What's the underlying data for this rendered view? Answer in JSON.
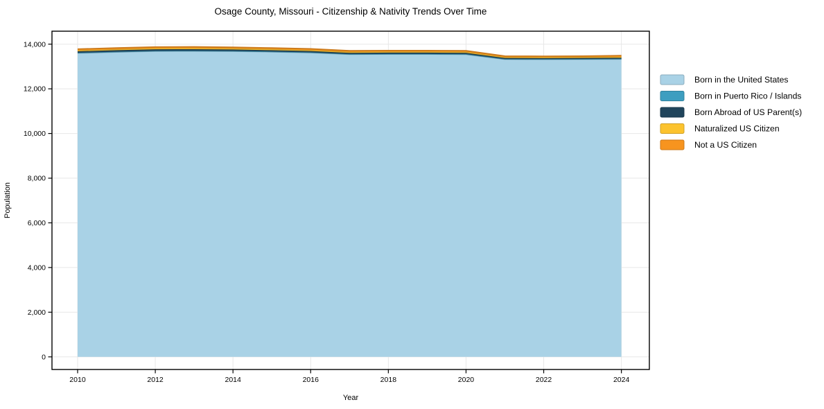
{
  "title": "Osage County, Missouri - Citizenship & Nativity Trends Over Time",
  "chart_data": {
    "type": "area",
    "stacked": true,
    "title": "Osage County, Missouri - Citizenship & Nativity Trends Over Time",
    "xlabel": "Year",
    "ylabel": "Population",
    "x": [
      2010,
      2011,
      2012,
      2013,
      2014,
      2015,
      2016,
      2017,
      2018,
      2019,
      2020,
      2021,
      2022,
      2023,
      2024
    ],
    "series": [
      {
        "name": "Born in the United States",
        "color": "#a9d2e6",
        "values": [
          13600,
          13645,
          13685,
          13690,
          13680,
          13655,
          13620,
          13545,
          13555,
          13555,
          13540,
          13325,
          13320,
          13325,
          13330
        ]
      },
      {
        "name": "Born in Puerto Rico / Islands",
        "color": "#3d9ec0",
        "values": [
          15,
          15,
          15,
          15,
          15,
          15,
          15,
          10,
          10,
          10,
          15,
          10,
          10,
          10,
          15
        ]
      },
      {
        "name": "Born Abroad of US Parent(s)",
        "color": "#21455c",
        "values": [
          65,
          70,
          70,
          70,
          65,
          60,
          55,
          55,
          55,
          55,
          55,
          45,
          45,
          45,
          45
        ]
      },
      {
        "name": "Naturalized US Citizen",
        "color": "#fcc32e",
        "values": [
          45,
          45,
          50,
          50,
          50,
          50,
          45,
          45,
          45,
          45,
          45,
          40,
          40,
          40,
          45
        ]
      },
      {
        "name": "Not a US Citizen",
        "color": "#f7941f",
        "values": [
          55,
          55,
          55,
          55,
          50,
          50,
          55,
          50,
          50,
          50,
          50,
          45,
          45,
          45,
          55
        ]
      }
    ],
    "x_ticks": [
      2010,
      2012,
      2014,
      2016,
      2018,
      2020,
      2022,
      2024
    ],
    "y_ticks": [
      0,
      2000,
      4000,
      6000,
      8000,
      10000,
      12000,
      14000
    ],
    "xlim": [
      2009.34,
      2024.72
    ],
    "ylim": [
      -565,
      14580
    ],
    "grid": true,
    "legend_position": "right-outside"
  },
  "colors": {
    "background": "#ffffff",
    "grid": "#e7e7e7",
    "spine": "#000000",
    "text": "#000000"
  }
}
